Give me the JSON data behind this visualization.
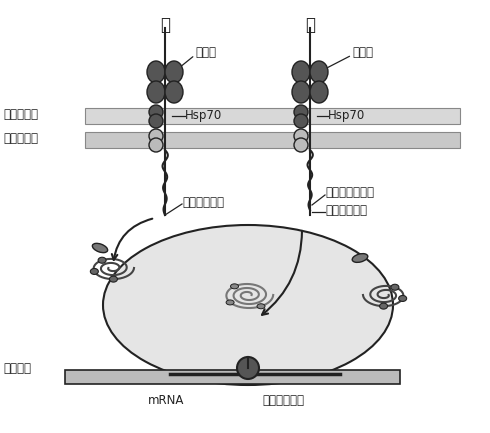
{
  "title_jia": "甲",
  "title_yi": "乙",
  "label_kongdanbai": "孔蛋白",
  "label_hsp70": "Hsp70",
  "label_outer": "叶绻体外膜",
  "label_inner": "叶绻体内膜",
  "label_stroma_seq": "基质导向序列",
  "label_thylakoid_seq": "类囊体导向序列",
  "label_thylakoid_mem": "类囊体膜",
  "label_mrna": "mRNA",
  "label_ribosome": "叶绻体核糖体",
  "bg_color": "#ffffff",
  "dark_color": "#555555",
  "gray_color": "#999999",
  "light_gray": "#cccccc",
  "membrane_gray": "#d0d0d0",
  "line_color": "#222222",
  "stroma_fill": "#e5e5e5"
}
